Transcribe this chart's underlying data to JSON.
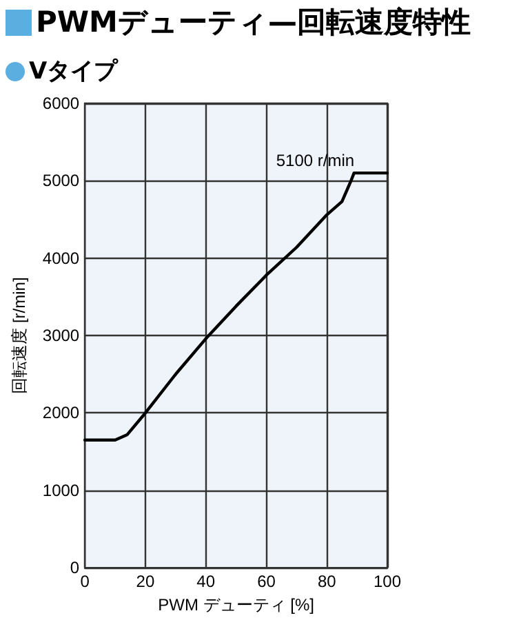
{
  "chart_data": {
    "type": "line",
    "title": "PWMデューティ—回転速度特性",
    "subtitle": "Vタイプ",
    "xlabel": "PWM デューティ [%]",
    "ylabel": "回転速度 [r/min]",
    "annotations": [
      {
        "text": "5100 r/min",
        "x": 90,
        "y": 5100
      }
    ],
    "series": [
      {
        "color": "#000000",
        "x": [
          0,
          10,
          14,
          20,
          30,
          40,
          50,
          60,
          70,
          80,
          85,
          88,
          89,
          90,
          100
        ],
        "values": [
          1650,
          1650,
          1720,
          2000,
          2500,
          2960,
          3380,
          3780,
          4140,
          4560,
          4730,
          5000,
          5100,
          5100,
          5100
        ]
      }
    ],
    "xlim": [
      0,
      100
    ],
    "xticks": [
      0,
      20,
      40,
      60,
      80,
      100
    ],
    "ylim": [
      0,
      6000
    ],
    "yticks": [
      0,
      1000,
      2000,
      3000,
      4000,
      5000,
      6000
    ],
    "grid": true,
    "marker": "none",
    "line_style": "solid"
  }
}
